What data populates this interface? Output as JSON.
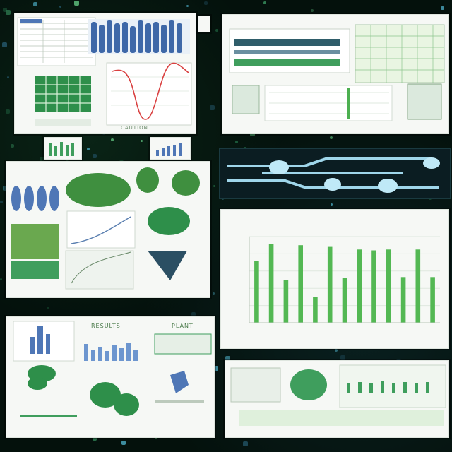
{
  "colors": {
    "background": "#04110c",
    "panel": "#f6f8f5",
    "accent_green": "#53b853",
    "accent_blue": "#4f77b6",
    "trend_red": "#d94040"
  },
  "panels": {
    "top_left": {
      "caption": "CAUTION ... ..."
    },
    "top_right": {
      "caption": ""
    },
    "middle_left": {
      "caption": ""
    },
    "bottom_left": {
      "header": "RESULTS",
      "header2": "PLANT"
    },
    "bottom_right": {
      "caption": ""
    }
  },
  "chart_data": {
    "type": "bar",
    "title": "",
    "categories": [
      "",
      "",
      "",
      "",
      "",
      "",
      "",
      "",
      "",
      "",
      "",
      "",
      ""
    ],
    "values": [
      72,
      91,
      50,
      90,
      30,
      88,
      52,
      85,
      84,
      85,
      53,
      85,
      53
    ],
    "ylim": [
      0,
      100
    ],
    "color": "#53b853",
    "grid": true,
    "legend": "none"
  }
}
